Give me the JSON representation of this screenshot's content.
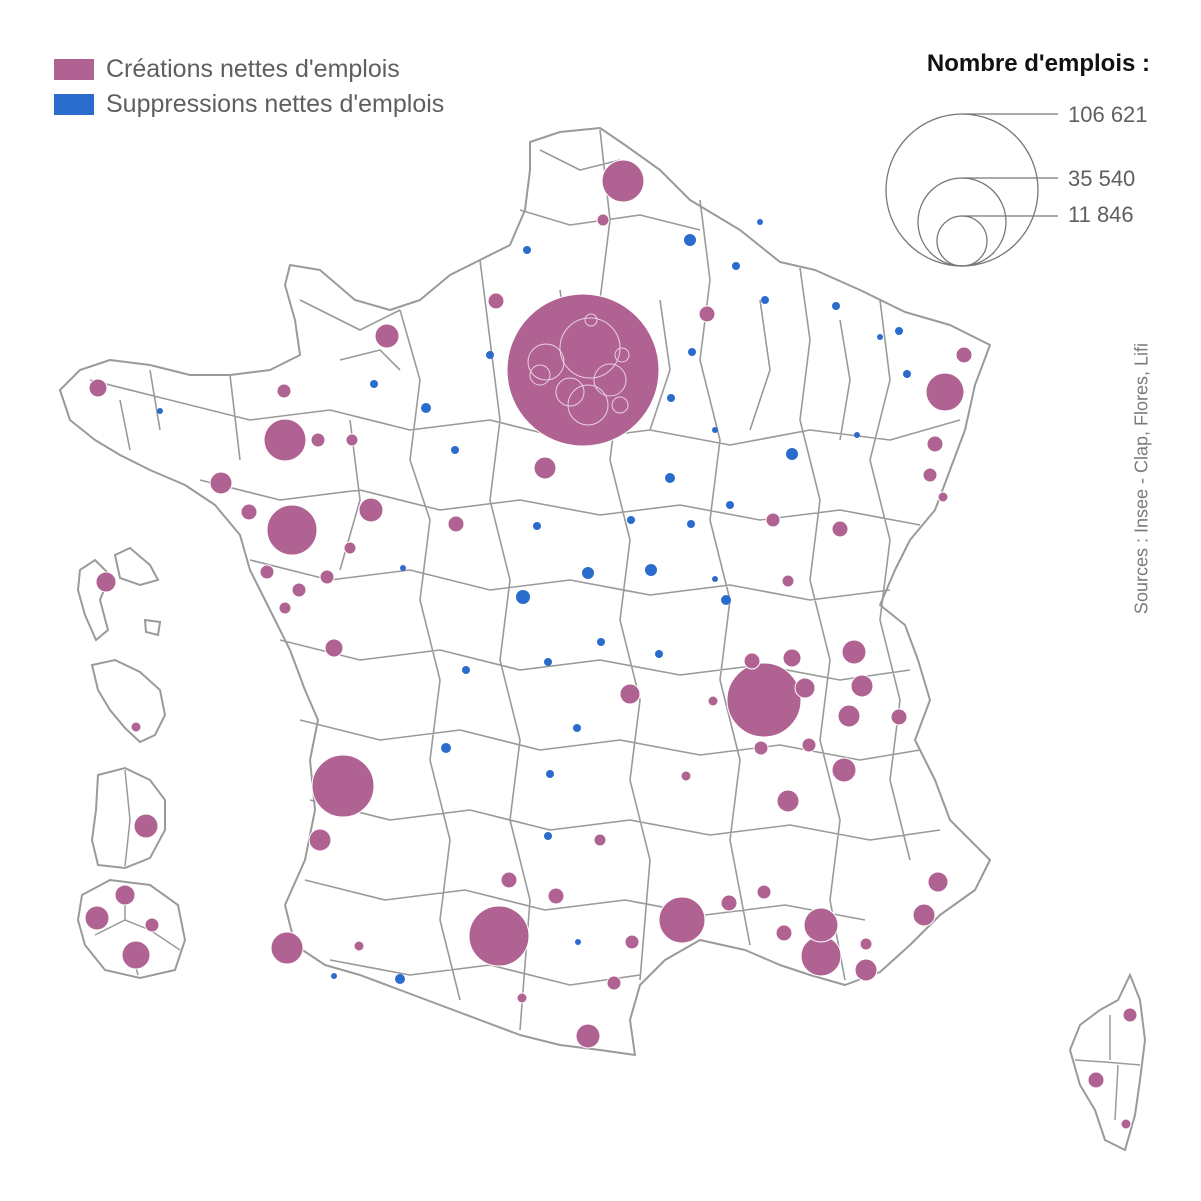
{
  "colors": {
    "creation": "#b06392",
    "suppression": "#2a6ccb",
    "border": "#9a9a9a",
    "land": "#ffffff"
  },
  "legend": {
    "items": [
      {
        "label": "Créations nettes d'emplois",
        "color": "#b06392"
      },
      {
        "label": "Suppressions nettes d'emplois",
        "color": "#2a6ccb"
      }
    ]
  },
  "size_legend": {
    "title": "Nombre d'emplois :",
    "values": [
      {
        "label": "106 621",
        "value": 106621
      },
      {
        "label": "35 540",
        "value": 35540
      },
      {
        "label": "11 846",
        "value": 11846
      }
    ]
  },
  "source": "Sources : Insee - Clap, Flores, Lifi"
}
